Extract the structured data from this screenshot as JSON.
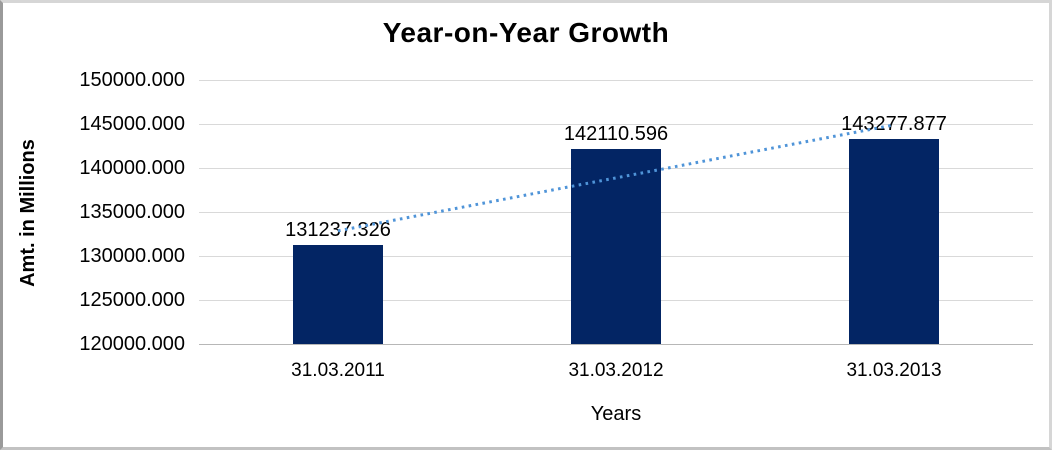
{
  "chart_data": {
    "type": "bar",
    "title": "Year-on-Year Growth",
    "xlabel": "Years",
    "ylabel": "Amt. in Millions",
    "categories": [
      "31.03.2011",
      "31.03.2012",
      "31.03.2013"
    ],
    "values": [
      131237.326,
      142110.596,
      143277.877
    ],
    "data_labels": [
      "131237.326",
      "142110.596",
      "143277.877"
    ],
    "ylim": [
      120000,
      150000
    ],
    "ytick_step": 5000,
    "yticks": [
      "150000.000",
      "145000.000",
      "140000.000",
      "135000.000",
      "130000.000",
      "125000.000",
      "120000.000"
    ],
    "grid": true,
    "legend": "none",
    "bar_color": "#032564",
    "trendline": {
      "style": "dotted",
      "color": "#4f94d8",
      "fit": "linear"
    },
    "gridline_color": "#d9d9d9",
    "axis_line_color": "#b7b7b7"
  }
}
